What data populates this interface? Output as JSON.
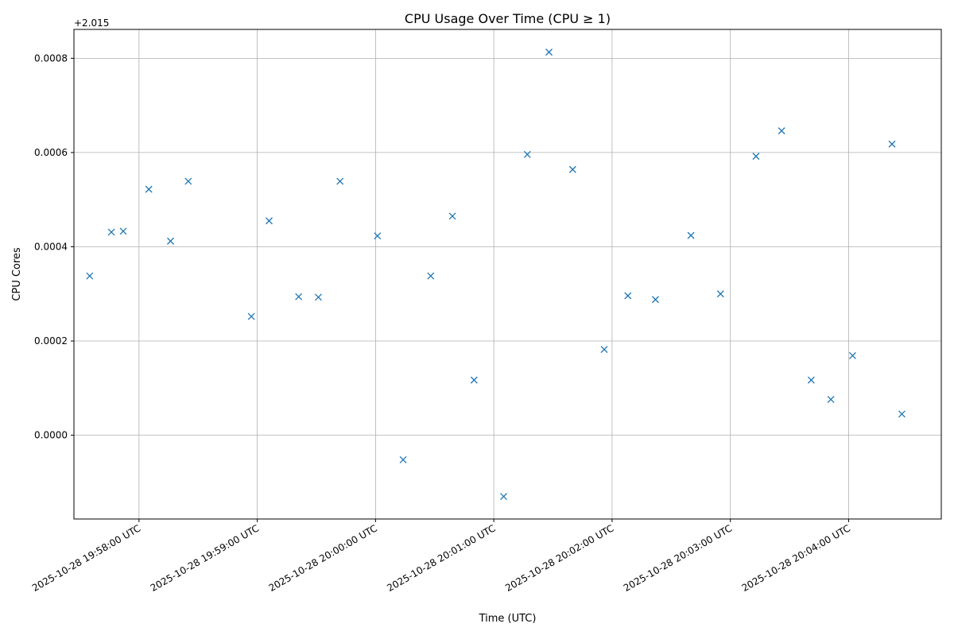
{
  "chart_data": {
    "type": "scatter",
    "title": "CPU Usage Over Time (CPU ≥ 1)",
    "xlabel": "Time (UTC)",
    "ylabel": "CPU Cores",
    "y_offset_label": "+2.015",
    "marker": "x",
    "grid": true,
    "series_color": "#1f77b4",
    "x_ticks": [
      "2025-10-28 19:58:00 UTC",
      "2025-10-28 19:59:00 UTC",
      "2025-10-28 20:00:00 UTC",
      "2025-10-28 20:01:00 UTC",
      "2025-10-28 20:02:00 UTC",
      "2025-10-28 20:03:00 UTC",
      "2025-10-28 20:04:00 UTC"
    ],
    "y_ticks": [
      "0.0000",
      "0.0002",
      "0.0004",
      "0.0006",
      "0.0008"
    ],
    "xlim": [
      "2025-10-28 19:57:27 UTC",
      "2025-10-28 20:04:47 UTC"
    ],
    "ylim": [
      2.0148222,
      2.0158613
    ],
    "series": [
      {
        "points": [
          {
            "x": "2025-10-28 19:57:35 UTC",
            "y": 2.015338
          },
          {
            "x": "2025-10-28 19:57:46 UTC",
            "y": 2.015431
          },
          {
            "x": "2025-10-28 19:57:52 UTC",
            "y": 2.015433
          },
          {
            "x": "2025-10-28 19:58:05 UTC",
            "y": 2.015522
          },
          {
            "x": "2025-10-28 19:58:16 UTC",
            "y": 2.015412
          },
          {
            "x": "2025-10-28 19:58:25 UTC",
            "y": 2.015539
          },
          {
            "x": "2025-10-28 19:58:57 UTC",
            "y": 2.015252
          },
          {
            "x": "2025-10-28 19:59:06 UTC",
            "y": 2.015455
          },
          {
            "x": "2025-10-28 19:59:21 UTC",
            "y": 2.015294
          },
          {
            "x": "2025-10-28 19:59:31 UTC",
            "y": 2.015293
          },
          {
            "x": "2025-10-28 19:59:42 UTC",
            "y": 2.015539
          },
          {
            "x": "2025-10-28 20:00:01 UTC",
            "y": 2.015423
          },
          {
            "x": "2025-10-28 20:00:14 UTC",
            "y": 2.014948
          },
          {
            "x": "2025-10-28 20:00:28 UTC",
            "y": 2.015338
          },
          {
            "x": "2025-10-28 20:00:39 UTC",
            "y": 2.015465
          },
          {
            "x": "2025-10-28 20:00:50 UTC",
            "y": 2.015117
          },
          {
            "x": "2025-10-28 20:01:05 UTC",
            "y": 2.01487
          },
          {
            "x": "2025-10-28 20:01:17 UTC",
            "y": 2.015596
          },
          {
            "x": "2025-10-28 20:01:28 UTC",
            "y": 2.015813
          },
          {
            "x": "2025-10-28 20:01:40 UTC",
            "y": 2.015564
          },
          {
            "x": "2025-10-28 20:01:56 UTC",
            "y": 2.015182
          },
          {
            "x": "2025-10-28 20:02:08 UTC",
            "y": 2.015296
          },
          {
            "x": "2025-10-28 20:02:22 UTC",
            "y": 2.015288
          },
          {
            "x": "2025-10-28 20:02:40 UTC",
            "y": 2.015424
          },
          {
            "x": "2025-10-28 20:02:55 UTC",
            "y": 2.0153
          },
          {
            "x": "2025-10-28 20:03:13 UTC",
            "y": 2.015592
          },
          {
            "x": "2025-10-28 20:03:26 UTC",
            "y": 2.015646
          },
          {
            "x": "2025-10-28 20:03:41 UTC",
            "y": 2.015117
          },
          {
            "x": "2025-10-28 20:03:51 UTC",
            "y": 2.015076
          },
          {
            "x": "2025-10-28 20:04:02 UTC",
            "y": 2.015169
          },
          {
            "x": "2025-10-28 20:04:22 UTC",
            "y": 2.015618
          },
          {
            "x": "2025-10-28 20:04:27 UTC",
            "y": 2.015045
          }
        ]
      }
    ]
  }
}
